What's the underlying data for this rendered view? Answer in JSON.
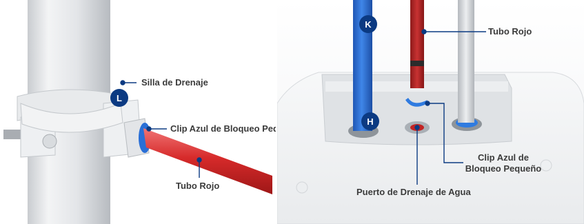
{
  "left": {
    "labels": {
      "saddle": "Silla de Drenaje",
      "clip": "Clip Azul de Bloqueo Pequeño",
      "tube": "Tubo Rojo"
    },
    "badge": "L"
  },
  "right": {
    "labels": {
      "tube": "Tubo Rojo",
      "clip_line1": "Clip Azul de",
      "clip_line2": "Bloqueo Pequeño",
      "port": "Puerto de Drenaje de Agua"
    },
    "badges": {
      "k": "K",
      "h": "H"
    }
  },
  "colors": {
    "callout": "#0b3a82",
    "red_tube": "#d62a2a",
    "blue_tube": "#2a6fd6",
    "text": "#3b3b3b"
  }
}
